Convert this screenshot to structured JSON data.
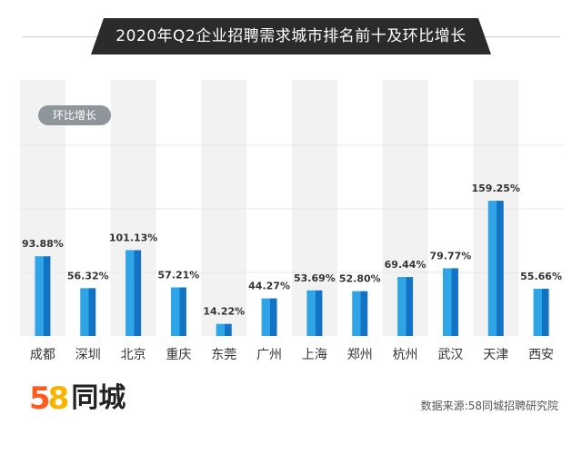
{
  "title": "2020年Q2企业招聘需求城市排名前十及环比增长",
  "legend_badge": "环比增长",
  "logo": {
    "digit_5": "5",
    "digit_8": "8",
    "text": "同城"
  },
  "source": "数据来源:58同城招聘研究院",
  "colors": {
    "bar_light": "#2fa4e7",
    "bar_dark": "#1273c4",
    "column_band": "#f2f2f2",
    "banner": "#2b2b2b"
  },
  "chart_data": {
    "type": "bar",
    "categories": [
      "成都",
      "深圳",
      "北京",
      "重庆",
      "东莞",
      "广州",
      "上海",
      "郑州",
      "杭州",
      "武汉",
      "天津",
      "西安"
    ],
    "values": [
      93.88,
      56.32,
      101.13,
      57.21,
      14.22,
      44.27,
      53.69,
      52.8,
      69.44,
      79.77,
      159.25,
      55.66
    ],
    "value_labels": [
      "93.88%",
      "56.32%",
      "101.13%",
      "57.21%",
      "14.22%",
      "44.27%",
      "53.69%",
      "52.80%",
      "69.44%",
      "79.77%",
      "159.25%",
      "55.66%"
    ],
    "unit": "%",
    "ylim": [
      0,
      175
    ],
    "grid": true,
    "legend": "top-left"
  }
}
